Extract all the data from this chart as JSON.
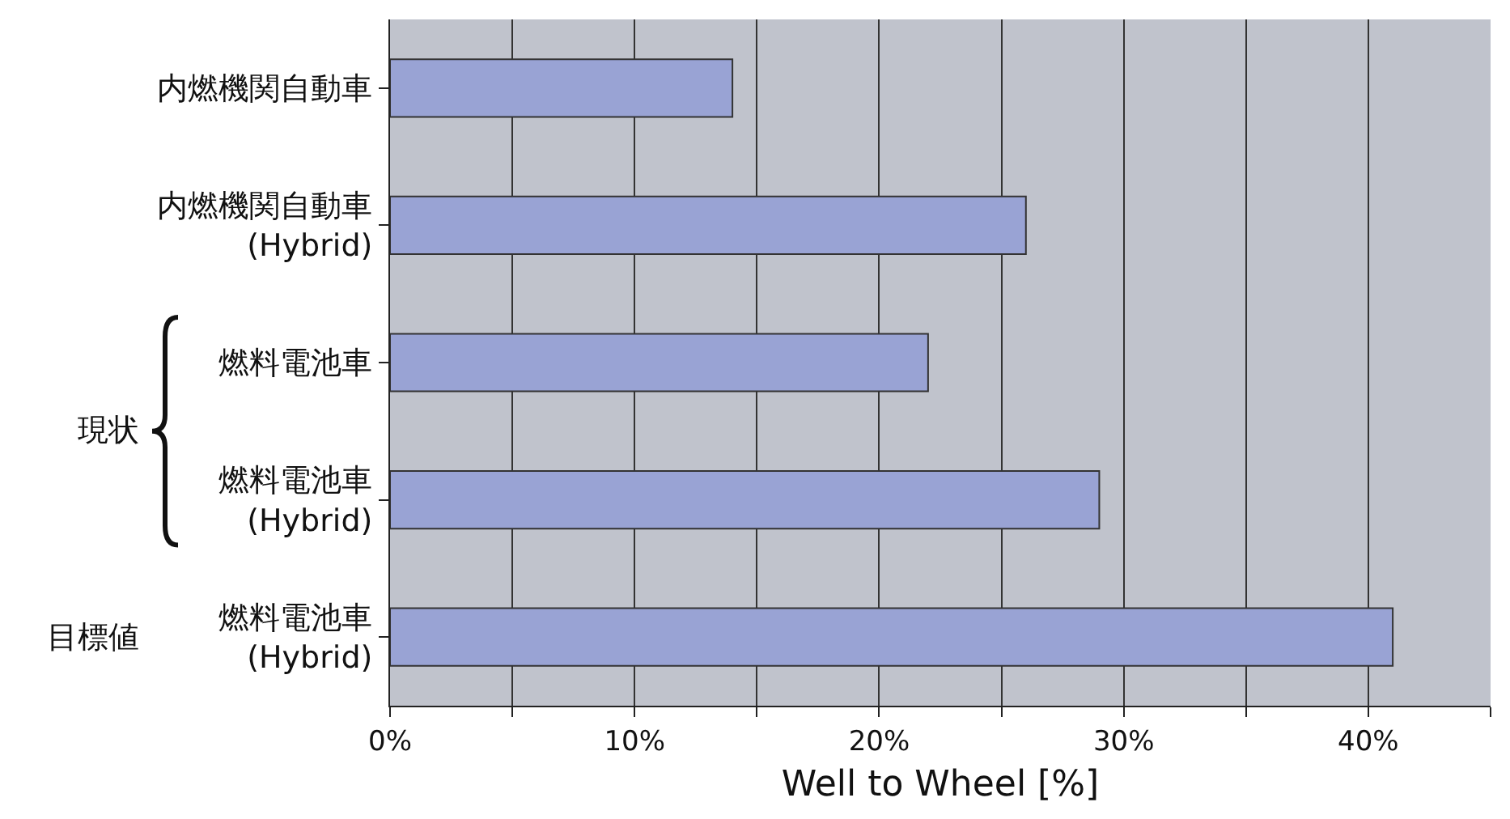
{
  "chart_data": {
    "type": "bar",
    "orientation": "horizontal",
    "xlabel": "Well to Wheel [%]",
    "categories": [
      "内燃機関自動車",
      "内燃機関自動車\n(Hybrid)",
      "燃料電池車",
      "燃料電池車\n(Hybrid)",
      "燃料電池車\n(Hybrid)"
    ],
    "values": [
      14,
      26,
      22,
      29,
      41
    ],
    "color": "#99a3d4",
    "xlim": [
      0,
      45
    ],
    "xticks": [
      {
        "value": 0,
        "label": "0%"
      },
      {
        "value": 5,
        "label": null
      },
      {
        "value": 10,
        "label": "10%"
      },
      {
        "value": 15,
        "label": null
      },
      {
        "value": 20,
        "label": "20%"
      },
      {
        "value": 25,
        "label": null
      },
      {
        "value": 30,
        "label": "30%"
      },
      {
        "value": 35,
        "label": null
      },
      {
        "value": 40,
        "label": "40%"
      },
      {
        "value": 45,
        "label": null
      }
    ],
    "grid": "x",
    "legend": false,
    "annotations": [
      "現状",
      "目標値"
    ]
  }
}
